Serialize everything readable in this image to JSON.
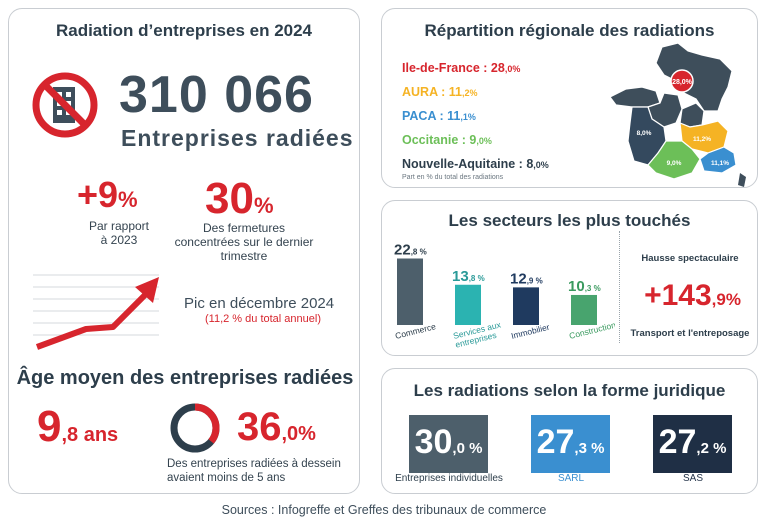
{
  "main": {
    "title": "Radiation d’entreprises en 2024",
    "total_value": "310 066",
    "total_label": "Entreprises radiées",
    "growth": {
      "value": "+9",
      "unit": "%",
      "label_line1": "Par rapport",
      "label_line2": "à 2023"
    },
    "q4_share": {
      "value": "30",
      "unit": "%",
      "label": "Des fermetures concentrées sur le dernier trimestre"
    },
    "peak": {
      "title": "Pic en décembre 2024",
      "note": "(11,2 % du total annuel)"
    },
    "age": {
      "title": "Âge moyen des entreprises radiées",
      "value_int": "9",
      "value_dec": ",8 ans",
      "share_int": "36",
      "share_dec": ",0%",
      "share_fraction": 0.36,
      "share_label": "Des entreprises radiées à dessein avaient moins de 5 ans"
    },
    "icons": [
      "no-building-icon",
      "trend-arrow-icon"
    ]
  },
  "region": {
    "title": "Répartition régionale des radiations",
    "items": [
      {
        "name": "Ile-de-France : 28",
        "dec": ",0%",
        "color": "#d7252d"
      },
      {
        "name": "AURA : 11",
        "dec": ",2%",
        "color": "#f5b324"
      },
      {
        "name": "PACA : 11",
        "dec": ",1%",
        "color": "#3a8fd0"
      },
      {
        "name": "Occitanie : 9",
        "dec": ",0%",
        "color": "#6cbf58"
      },
      {
        "name": "Nouvelle-Aquitaine : 8",
        "dec": ",0%",
        "color": "#2d3e4b"
      }
    ],
    "note": "Part en % du total des radiations",
    "map_labels": {
      "idf": "28,0%",
      "aura": "11,2%",
      "paca": "11,1%",
      "occitanie": "9,0%",
      "na": "8,0%"
    }
  },
  "sectors": {
    "title": "Les secteurs les plus touchés",
    "chart_data": {
      "type": "bar",
      "title": "Les secteurs les plus touchés",
      "categories": [
        "Commerce",
        "Services aux entreprises",
        "Immobilier",
        "Construction"
      ],
      "values": [
        22.8,
        13.8,
        12.9,
        10.3
      ],
      "value_labels": [
        {
          "int": "22",
          "dec": ",8 %"
        },
        {
          "int": "13",
          "dec": ",8 %"
        },
        {
          "int": "12",
          "dec": ",9 %"
        },
        {
          "int": "10",
          "dec": ",3 %"
        }
      ],
      "category_labels": [
        [
          "Commerce"
        ],
        [
          "Services aux",
          "entreprises"
        ],
        [
          "Immobilier"
        ],
        [
          "Construction"
        ]
      ],
      "colors": [
        "#4d5f6b",
        "#2bb3b1",
        "#1f3a5f",
        "#48a46e"
      ],
      "label_colors": [
        "#2d3e4b",
        "#2a9a98",
        "#1f3a5f",
        "#3a9a5f"
      ],
      "ylim": [
        0,
        24
      ]
    },
    "hausse_label": "Hausse spectaculaire",
    "hausse_int": "+143",
    "hausse_dec": ",9%",
    "hausse_sub": "Transport et l'entreposage"
  },
  "forms": {
    "title": "Les radiations selon la forme juridique",
    "items": [
      {
        "int": "30",
        "dec": ",0 %",
        "label": "Entreprises individuelles",
        "color": "#4d5f6b",
        "label_color": "#2d3e4b"
      },
      {
        "int": "27",
        "dec": ",3 %",
        "label": "SARL",
        "color": "#3a8fd0",
        "label_color": "#3a8fd0"
      },
      {
        "int": "27",
        "dec": ",2 %",
        "label": "SAS",
        "color": "#1f2f45",
        "label_color": "#1f2f45"
      }
    ]
  },
  "sources": "Sources : Infogreffe et  Greffes des tribunaux de commerce"
}
